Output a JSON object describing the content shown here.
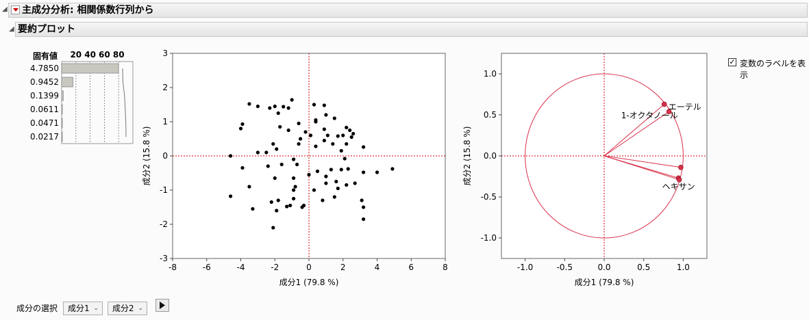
{
  "report": {
    "title": "主成分分析: 相関係数行列から",
    "section_title": "要約プロット"
  },
  "eigen": {
    "header": "固有値",
    "axis_ticks": [
      "20",
      "40",
      "60",
      "80"
    ],
    "values": [
      "4.7850",
      "0.9452",
      "0.1399",
      "0.0611",
      "0.0471",
      "0.0217"
    ],
    "percents": [
      79.8,
      15.8,
      2.3,
      1.0,
      0.8,
      0.4
    ]
  },
  "score_plot": {
    "xlabel": "成分1 (79.8 %)",
    "ylabel": "成分2 (15.8 %)",
    "xlim": [
      -8,
      8
    ],
    "ylim": [
      -3,
      3
    ],
    "xticks": [
      -8,
      -6,
      -4,
      -2,
      0,
      2,
      4,
      6,
      8
    ],
    "yticks": [
      -3,
      -2,
      -1,
      0,
      1,
      2,
      3
    ],
    "points": [
      [
        0.3,
        1.5
      ],
      [
        0.9,
        1.48
      ],
      [
        -1.0,
        1.64
      ],
      [
        -3.5,
        1.52
      ],
      [
        -1.5,
        1.44
      ],
      [
        -1.2,
        1.4
      ],
      [
        -2.3,
        1.4
      ],
      [
        -1.8,
        1.25
      ],
      [
        -2.0,
        1.45
      ],
      [
        -3.0,
        1.45
      ],
      [
        -1.7,
        0.85
      ],
      [
        -3.9,
        0.93
      ],
      [
        -4.0,
        0.8
      ],
      [
        -0.6,
        0.95
      ],
      [
        0.4,
        1.05
      ],
      [
        0.4,
        1.0
      ],
      [
        1.5,
        1.1
      ],
      [
        1.0,
        1.2
      ],
      [
        2.2,
        0.83
      ],
      [
        2.4,
        0.75
      ],
      [
        -1.2,
        0.75
      ],
      [
        -0.2,
        0.7
      ],
      [
        0.1,
        0.6
      ],
      [
        2.6,
        0.65
      ],
      [
        0.9,
        0.78
      ],
      [
        1.1,
        0.6
      ],
      [
        1.7,
        0.58
      ],
      [
        2.0,
        0.6
      ],
      [
        2.5,
        0.55
      ],
      [
        2.2,
        0.35
      ],
      [
        -0.5,
        0.5
      ],
      [
        -0.6,
        0.35
      ],
      [
        -2.1,
        0.35
      ],
      [
        -1.9,
        0.2
      ],
      [
        0.9,
        0.45
      ],
      [
        3.2,
        0.26
      ],
      [
        1.4,
        0.35
      ],
      [
        0.4,
        0.28
      ],
      [
        -2.5,
        0.1
      ],
      [
        1.9,
        0.15
      ],
      [
        -3.0,
        0.1
      ],
      [
        -4.6,
        0.0
      ],
      [
        2.1,
        -0.08
      ],
      [
        -0.9,
        -0.1
      ],
      [
        -0.7,
        -0.25
      ],
      [
        -1.6,
        -0.25
      ],
      [
        -2.4,
        -0.3
      ],
      [
        -3.9,
        -0.35
      ],
      [
        0.5,
        -0.45
      ],
      [
        1.3,
        -0.4
      ],
      [
        1.9,
        -0.4
      ],
      [
        2.3,
        -0.38
      ],
      [
        3.2,
        -0.48
      ],
      [
        4.9,
        -0.38
      ],
      [
        4.0,
        -0.48
      ],
      [
        -2.0,
        -0.65
      ],
      [
        0.0,
        -0.55
      ],
      [
        -0.9,
        -0.65
      ],
      [
        1.0,
        -0.6
      ],
      [
        1.6,
        -0.75
      ],
      [
        1.0,
        -0.8
      ],
      [
        2.7,
        -0.8
      ],
      [
        2.2,
        -0.85
      ],
      [
        -0.8,
        -0.9
      ],
      [
        -3.5,
        -0.9
      ],
      [
        1.7,
        -0.95
      ],
      [
        0.3,
        -1.0
      ],
      [
        -0.9,
        -1.0
      ],
      [
        -4.6,
        -1.18
      ],
      [
        1.5,
        -1.2
      ],
      [
        -0.9,
        -1.25
      ],
      [
        0.8,
        -1.3
      ],
      [
        -1.8,
        -1.3
      ],
      [
        -2.2,
        -1.35
      ],
      [
        3.1,
        -1.3
      ],
      [
        -1.1,
        -1.45
      ],
      [
        -0.3,
        -1.45
      ],
      [
        -1.3,
        -1.48
      ],
      [
        -0.4,
        -1.5
      ],
      [
        3.2,
        -1.5
      ],
      [
        -3.3,
        -1.55
      ],
      [
        -1.9,
        -1.6
      ],
      [
        3.2,
        -1.85
      ],
      [
        -2.1,
        -2.1
      ]
    ]
  },
  "loading_plot": {
    "xlabel": "成分1 (79.8 %)",
    "ylabel": "成分2 (15.8 %)",
    "xlim": [
      -1.3,
      1.3
    ],
    "ylim": [
      -1.25,
      1.25
    ],
    "xticks": [
      "-1.0",
      "-0.5",
      "0.0",
      "0.5",
      "1.0"
    ],
    "yticks": [
      "1.0",
      "0.5",
      "0.0",
      "-0.5",
      "-1.0"
    ],
    "xtick_values": [
      -1.0,
      -0.5,
      0.0,
      0.5,
      1.0
    ],
    "ytick_values": [
      1.0,
      0.5,
      0.0,
      -0.5,
      -1.0
    ],
    "vectors": [
      {
        "label": "エーテル",
        "x": 0.76,
        "y": 0.63
      },
      {
        "label": "1-オクタノール",
        "x": 0.82,
        "y": 0.54
      },
      {
        "label": "",
        "x": 0.97,
        "y": -0.14
      },
      {
        "label": "",
        "x": 0.94,
        "y": -0.27
      },
      {
        "label": "ヘキサン",
        "x": 0.95,
        "y": -0.29
      }
    ],
    "accent": "#d9304a"
  },
  "options": {
    "show_labels_label": "変数のラベルを表示",
    "show_labels_checked": true
  },
  "component_select": {
    "label": "成分の選択",
    "first": "成分1",
    "second": "成分2"
  }
}
